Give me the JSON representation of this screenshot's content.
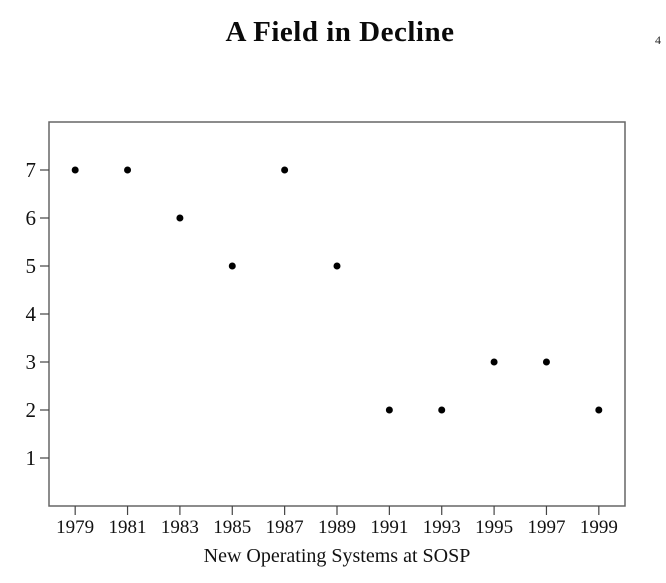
{
  "page": {
    "page_number": "4"
  },
  "chart_data": {
    "type": "scatter",
    "title": "A Field in Decline",
    "xlabel": "New Operating Systems at SOSP",
    "ylabel": "",
    "x": [
      1979,
      1981,
      1983,
      1985,
      1987,
      1989,
      1991,
      1993,
      1995,
      1997,
      1999
    ],
    "y": [
      7,
      7,
      6,
      5,
      7,
      5,
      2,
      2,
      3,
      3,
      2
    ],
    "xticks": [
      1979,
      1981,
      1983,
      1985,
      1987,
      1989,
      1991,
      1993,
      1995,
      1997,
      1999
    ],
    "yticks": [
      1,
      2,
      3,
      4,
      5,
      6,
      7
    ],
    "xlim": [
      1978,
      2000
    ],
    "ylim": [
      0,
      8
    ],
    "grid": false,
    "legend": null,
    "marker": {
      "shape": "circle",
      "color": "#000000"
    },
    "colors": {
      "frame": "#666666",
      "tick": "#444444",
      "text": "#111111",
      "background": "#ffffff"
    }
  }
}
